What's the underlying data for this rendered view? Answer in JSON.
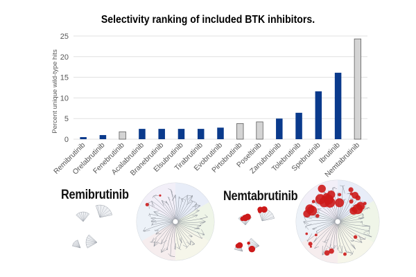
{
  "chart_data": {
    "type": "bar",
    "title": "Selectivity ranking of included BTK inhibitors.",
    "xlabel": "",
    "ylabel": "Percent unique wild-type hits",
    "ylim": [
      0,
      25
    ],
    "yticks": [
      0,
      5,
      10,
      15,
      20,
      25
    ],
    "grid": true,
    "categories": [
      "Remibrutinib",
      "Orelabrutinib",
      "Fenebrutinib",
      "Acalabrutinib",
      "Branebrutinib",
      "Elsubrutinib",
      "Tirabrutinib",
      "Evobrutinib",
      "Pirtobrutinib",
      "Poseltinib",
      "Zanubrutinib",
      "Tolebrutinib",
      "Spebrutinib",
      "Ibrutinib",
      "Nemtabrutinib"
    ],
    "values": [
      0.5,
      1.0,
      1.8,
      2.5,
      2.5,
      2.5,
      2.5,
      2.8,
      3.8,
      4.2,
      5.0,
      6.4,
      11.6,
      16.1,
      24.3
    ],
    "bar_style": [
      "covalent",
      "covalent",
      "reversible",
      "covalent",
      "covalent",
      "covalent",
      "covalent",
      "covalent",
      "reversible",
      "reversible",
      "covalent",
      "covalent",
      "covalent",
      "covalent",
      "reversible"
    ],
    "colors": {
      "covalent": "#0a3a8c",
      "reversible": "#d4d4d4",
      "reversible_edge": "#5c5c5c",
      "grid": "#e0e0e0",
      "axis_text": "#555555"
    }
  },
  "panels": {
    "left": {
      "drug": "Remibrutinib"
    },
    "right": {
      "drug": "Nemtabrutinib"
    }
  },
  "kinome": {
    "hit_color": "#cc1a1a",
    "group_colors": [
      "#e7ecf7",
      "#eef5e6",
      "#f6f6e8",
      "#f6ecec",
      "#ecf2f7",
      "#f2eef7"
    ]
  }
}
